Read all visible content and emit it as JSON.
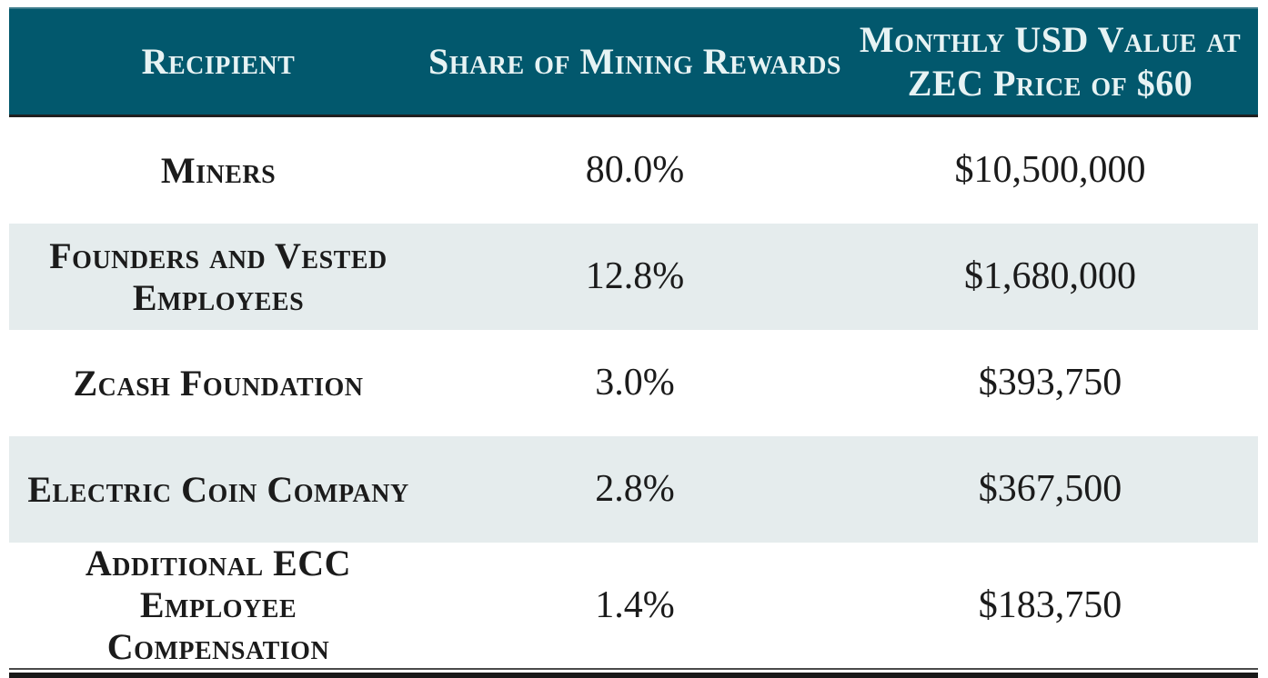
{
  "chart_data": {
    "type": "table",
    "title": "",
    "columns": [
      "Recipient",
      "Share of Mining Rewards",
      "Monthly USD Value at\nZEC Price of $60"
    ],
    "rows": [
      [
        "Miners",
        "80.0%",
        "$10,500,000"
      ],
      [
        "Founders and Vested Employees",
        "12.8%",
        "$1,680,000"
      ],
      [
        "Zcash Foundation",
        "3.0%",
        "$393,750"
      ],
      [
        "Electric Coin Company",
        "2.8%",
        "$367,500"
      ],
      [
        "Additional ECC Employee\nCompensation",
        "1.4%",
        "$183,750"
      ]
    ],
    "layout_hints": {
      "striped_rows": "even rows shaded",
      "header_style": "teal background, white bold small-caps",
      "bottom_border": "double rule"
    }
  },
  "colors": {
    "header_bg": "#02586d",
    "header_text": "#e7f3f4",
    "stripe_bg": "#e5eced",
    "body_text": "#1b1b1b",
    "rule_dark": "#181818",
    "rule_mid": "#4a4a4a"
  }
}
